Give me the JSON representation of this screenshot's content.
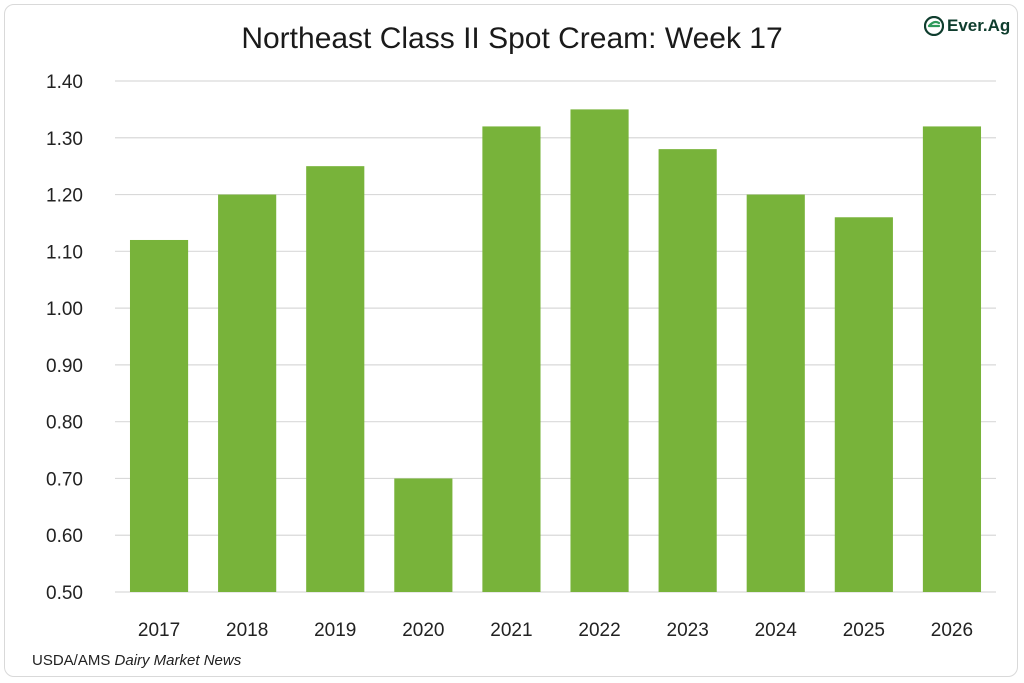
{
  "chart_data": {
    "type": "bar",
    "title": "Northeast Class II Spot Cream: Week 17",
    "categories": [
      "2017",
      "2018",
      "2019",
      "2020",
      "2021",
      "2022",
      "2023",
      "2024",
      "2025",
      "2026"
    ],
    "values": [
      1.12,
      1.2,
      1.25,
      0.7,
      1.32,
      1.35,
      1.28,
      1.2,
      1.16,
      1.32
    ],
    "ylim": [
      0.5,
      1.4
    ],
    "yticks": [
      "0.50",
      "0.60",
      "0.70",
      "0.80",
      "0.90",
      "1.00",
      "1.10",
      "1.20",
      "1.30",
      "1.40"
    ],
    "xlabel": "",
    "ylabel": "",
    "grid": true,
    "bar_color": "#78b33a",
    "grid_color": "#d9d9d9"
  },
  "logo": {
    "text": "Ever.Ag",
    "icon": "ever-ag-leaf-icon",
    "color": "#0f3d2e",
    "accent": "#2e9a5a"
  },
  "source": {
    "prefix": "USDA/AMS ",
    "italic": "Dairy Market News"
  }
}
